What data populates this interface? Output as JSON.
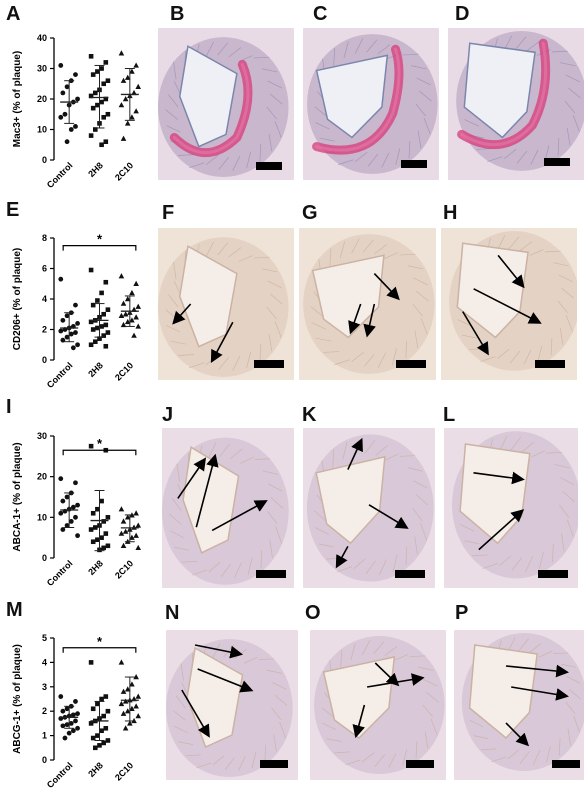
{
  "figure": {
    "panels": [
      "A",
      "B",
      "C",
      "D",
      "E",
      "F",
      "G",
      "H",
      "I",
      "J",
      "K",
      "L",
      "M",
      "N",
      "O",
      "P"
    ],
    "significance_marker": "*",
    "colors": {
      "he_pink": "#d63a7a",
      "tissue_blue": "#8f9dbd",
      "ihc_bg": "#efe3d8",
      "tissue_beige": "#e4d3c4",
      "ihc_lavender": "#d9c8d8",
      "points": "#111111",
      "error_bars": "#222222"
    }
  },
  "chart_data": [
    {
      "panel": "A",
      "type": "scatter",
      "ylabel": "Mac3+ (% of plaque)",
      "categories": [
        "Control",
        "2H8",
        "2C10"
      ],
      "markers": [
        "circle",
        "square",
        "triangle"
      ],
      "ylim": [
        0,
        40
      ],
      "yticks": [
        0,
        10,
        20,
        30,
        40
      ],
      "summary": [
        {
          "mean": 19,
          "sd_low": 12,
          "sd_high": 26
        },
        {
          "mean": 20.5,
          "sd_low": 10.5,
          "sd_high": 31
        },
        {
          "mean": 21.5,
          "sd_low": 13,
          "sd_high": 30
        }
      ],
      "points": [
        [
          31,
          28,
          26,
          24,
          22,
          20,
          19,
          18,
          15,
          14,
          11,
          10,
          6
        ],
        [
          34,
          32,
          30,
          29,
          28,
          26,
          25,
          23,
          22,
          21,
          20,
          19,
          18,
          17,
          15,
          14,
          12,
          10,
          8,
          6,
          5
        ],
        [
          35,
          31,
          29,
          27,
          26,
          24,
          22,
          21,
          20,
          18,
          16,
          14,
          12,
          7
        ]
      ],
      "significance": null
    },
    {
      "panel": "E",
      "type": "scatter",
      "ylabel": "CD206+ (% of plaque)",
      "categories": [
        "Control",
        "2H8",
        "2C10"
      ],
      "markers": [
        "circle",
        "square",
        "triangle"
      ],
      "ylim": [
        0,
        8
      ],
      "yticks": [
        0,
        2,
        4,
        6,
        8
      ],
      "summary": [
        {
          "mean": 2.1,
          "sd_low": 1.2,
          "sd_high": 3.1
        },
        {
          "mean": 2.6,
          "sd_low": 1.5,
          "sd_high": 3.7
        },
        {
          "mean": 3.2,
          "sd_low": 2.2,
          "sd_high": 4.2
        }
      ],
      "points": [
        [
          5.3,
          3.6,
          3.1,
          2.9,
          2.6,
          2.4,
          2.2,
          2.1,
          2.0,
          1.9,
          1.8,
          1.7,
          1.5,
          1.3,
          1.0,
          0.8
        ],
        [
          5.9,
          5.1,
          4.4,
          3.9,
          3.6,
          3.3,
          3.0,
          2.8,
          2.6,
          2.5,
          2.3,
          2.2,
          2.1,
          2.0,
          1.8,
          1.6,
          1.4,
          1.2,
          1.0,
          0.9
        ],
        [
          5.5,
          5.0,
          4.4,
          4.0,
          3.7,
          3.5,
          3.3,
          3.1,
          3.0,
          2.9,
          2.8,
          2.6,
          2.5,
          2.3,
          2.2,
          1.6
        ]
      ],
      "significance": {
        "from": 0,
        "to": 2,
        "y": 7.5,
        "label": "*"
      }
    },
    {
      "panel": "I",
      "type": "scatter",
      "ylabel": "ABCA-1+ (% of plaque)",
      "categories": [
        "Control",
        "2H8",
        "2C10"
      ],
      "markers": [
        "circle",
        "square",
        "triangle"
      ],
      "ylim": [
        0,
        30
      ],
      "yticks": [
        0,
        10,
        20,
        30
      ],
      "summary": [
        {
          "mean": 11.8,
          "sd_low": 7.5,
          "sd_high": 16
        },
        {
          "mean": 9.2,
          "sd_low": 1.8,
          "sd_high": 16.6
        },
        {
          "mean": 7.4,
          "sd_low": 4,
          "sd_high": 10.6
        }
      ],
      "points": [
        [
          19.5,
          18.5,
          16,
          15,
          14,
          13,
          12.5,
          12,
          11.5,
          11,
          10,
          9,
          8,
          7,
          5.5
        ],
        [
          27.5,
          26.5,
          14,
          12,
          11,
          10,
          9,
          8,
          7.5,
          7,
          6,
          5,
          4.5,
          4,
          3,
          2.5,
          2
        ],
        [
          12,
          11,
          10.5,
          10,
          9,
          8,
          7.5,
          7,
          6.5,
          6,
          5.5,
          5,
          4,
          3,
          2.5
        ]
      ],
      "significance": {
        "from": 0,
        "to": 2,
        "y": 26.5,
        "label": "*"
      }
    },
    {
      "panel": "M",
      "type": "scatter",
      "ylabel": "ABCG-1+ (% of plaque)",
      "categories": [
        "Control",
        "2H8",
        "2C10"
      ],
      "markers": [
        "circle",
        "square",
        "triangle"
      ],
      "ylim": [
        0,
        5
      ],
      "yticks": [
        0,
        1,
        2,
        3,
        4,
        5
      ],
      "summary": [
        {
          "mean": 1.75,
          "sd_low": 1.3,
          "sd_high": 2.2
        },
        {
          "mean": 1.6,
          "sd_low": 0.8,
          "sd_high": 2.4
        },
        {
          "mean": 2.45,
          "sd_low": 1.6,
          "sd_high": 3.4
        }
      ],
      "points": [
        [
          2.6,
          2.4,
          2.2,
          2.1,
          2.0,
          1.9,
          1.85,
          1.8,
          1.75,
          1.7,
          1.6,
          1.5,
          1.45,
          1.4,
          1.3,
          1.2,
          1.1,
          0.9
        ],
        [
          4.0,
          2.6,
          2.5,
          2.3,
          2.1,
          2.0,
          1.8,
          1.7,
          1.6,
          1.5,
          1.3,
          1.2,
          1.0,
          0.9,
          0.8,
          0.7,
          0.6,
          0.5
        ],
        [
          4.0,
          3.4,
          3.1,
          2.9,
          2.8,
          2.6,
          2.5,
          2.45,
          2.4,
          2.3,
          2.2,
          2.1,
          2.0,
          1.9,
          1.8,
          1.6,
          1.5,
          1.3
        ]
      ],
      "significance": {
        "from": 0,
        "to": 2,
        "y": 4.6,
        "label": "*"
      }
    }
  ],
  "micrographs": [
    {
      "panel": "B",
      "stain": "he",
      "variant": 0
    },
    {
      "panel": "C",
      "stain": "he",
      "variant": 1
    },
    {
      "panel": "D",
      "stain": "he",
      "variant": 2
    },
    {
      "panel": "F",
      "stain": "ihc",
      "variant": 0,
      "arrows": 2
    },
    {
      "panel": "G",
      "stain": "ihc",
      "variant": 1,
      "arrows": 3
    },
    {
      "panel": "H",
      "stain": "ihc",
      "variant": 2,
      "arrows": 3
    },
    {
      "panel": "J",
      "stain": "ihc-lav",
      "variant": 0,
      "arrows": 3
    },
    {
      "panel": "K",
      "stain": "ihc-lav",
      "variant": 1,
      "arrows": 3
    },
    {
      "panel": "L",
      "stain": "ihc-lav",
      "variant": 2,
      "arrows": 2
    },
    {
      "panel": "N",
      "stain": "ihc-lav",
      "variant": 0,
      "arrows": 3
    },
    {
      "panel": "O",
      "stain": "ihc-lav",
      "variant": 1,
      "arrows": 3
    },
    {
      "panel": "P",
      "stain": "ihc-lav",
      "variant": 2,
      "arrows": 3
    }
  ]
}
